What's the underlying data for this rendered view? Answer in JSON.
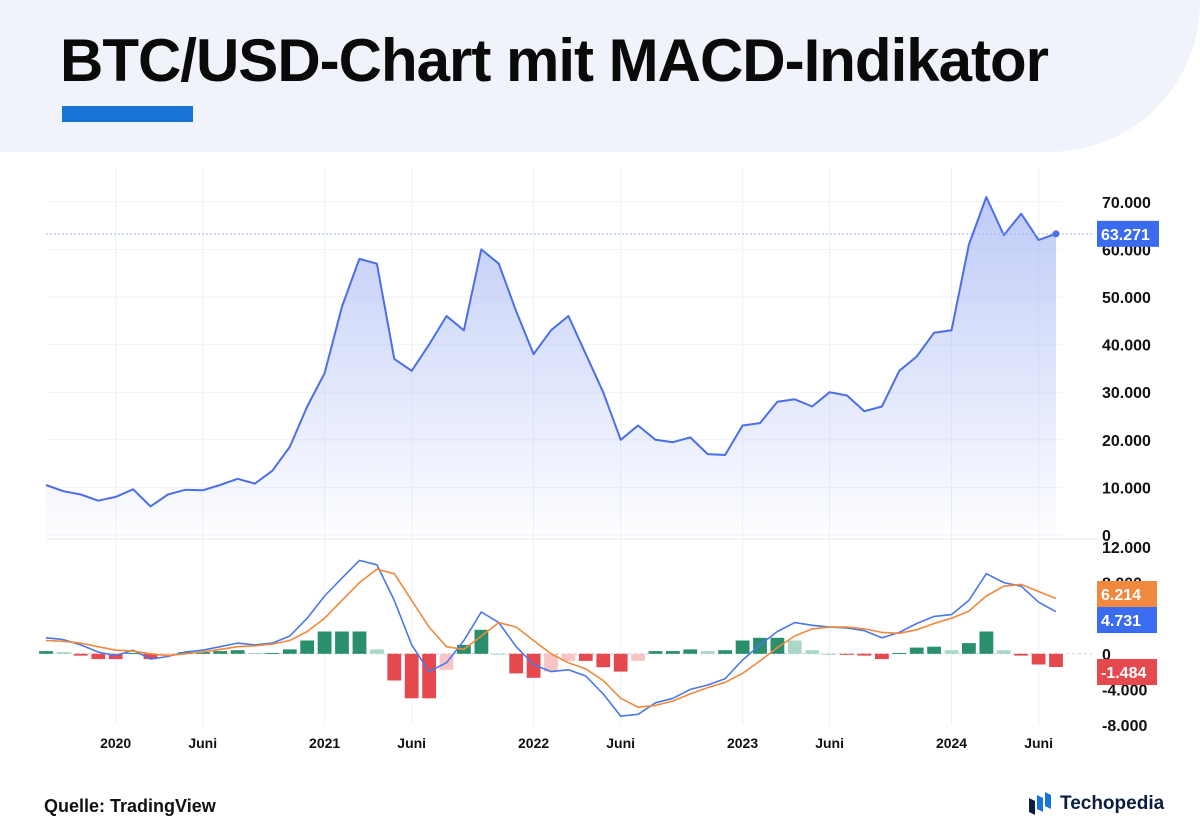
{
  "title": "BTC/USD-Chart mit MACD-Indikator",
  "source": "Quelle: TradingView",
  "brand": {
    "name": "Techopedia",
    "icon": "techopedia-logo-icon",
    "color": "#1a73d9"
  },
  "colors": {
    "price_line": "#4a6fe8",
    "price_fill_top": "#a9b9f5",
    "macd_line": "#4a78e8",
    "signal_line": "#f0883e",
    "hist_pos_strong": "#2a8f6c",
    "hist_pos_weak": "#a9d8c4",
    "hist_neg_strong": "#e5484d",
    "hist_neg_weak": "#f7c5c5",
    "badge_price": "#3b6cf0",
    "badge_signal": "#f0883e",
    "badge_macd": "#3b6cf0",
    "badge_hist": "#e5484d"
  },
  "chart_data": [
    {
      "type": "area",
      "series": [
        {
          "x": [
            "2019-09",
            "2019-10",
            "2019-11",
            "2019-12",
            "2020-01",
            "2020-02",
            "2020-03",
            "2020-04",
            "2020-05",
            "2020-06",
            "2020-07",
            "2020-08",
            "2020-09",
            "2020-10",
            "2020-11",
            "2020-12",
            "2021-01",
            "2021-02",
            "2021-03",
            "2021-04",
            "2021-05",
            "2021-06",
            "2021-07",
            "2021-08",
            "2021-09",
            "2021-10",
            "2021-11",
            "2021-12",
            "2022-01",
            "2022-02",
            "2022-03",
            "2022-04",
            "2022-05",
            "2022-06",
            "2022-07",
            "2022-08",
            "2022-09",
            "2022-10",
            "2022-11",
            "2022-12",
            "2023-01",
            "2023-02",
            "2023-03",
            "2023-04",
            "2023-05",
            "2023-06",
            "2023-07",
            "2023-08",
            "2023-09",
            "2023-10",
            "2023-11",
            "2023-12",
            "2024-01",
            "2024-02",
            "2024-03",
            "2024-04",
            "2024-05",
            "2024-06",
            "2024-07"
          ],
          "values": [
            10500,
            9200,
            8500,
            7200,
            8000,
            9600,
            6000,
            8500,
            9500,
            9400,
            10500,
            11800,
            10800,
            13500,
            18500,
            27000,
            34000,
            48000,
            58000,
            57000,
            37000,
            34500,
            40000,
            46000,
            43000,
            60000,
            57000,
            47000,
            38000,
            43000,
            46000,
            38000,
            30000,
            20000,
            23000,
            20000,
            19500,
            20500,
            17000,
            16800,
            23000,
            23500,
            28000,
            28500,
            27000,
            30000,
            29300,
            26000,
            27000,
            34500,
            37500,
            42500,
            43000,
            61000,
            71000,
            63000,
            67500,
            62000,
            63271
          ]
        }
      ],
      "ylim": [
        0,
        75000
      ],
      "yticks": [
        "70.000",
        "60.000",
        "50.000",
        "40.000",
        "30.000",
        "20.000",
        "10.000",
        "0"
      ],
      "last_value_label": "63.271",
      "grid": true
    },
    {
      "type": "line",
      "series": [
        {
          "x": [
            "2019-09",
            "2019-10",
            "2019-11",
            "2019-12",
            "2020-01",
            "2020-02",
            "2020-03",
            "2020-04",
            "2020-05",
            "2020-06",
            "2020-07",
            "2020-08",
            "2020-09",
            "2020-10",
            "2020-11",
            "2020-12",
            "2021-01",
            "2021-02",
            "2021-03",
            "2021-04",
            "2021-05",
            "2021-06",
            "2021-07",
            "2021-08",
            "2021-09",
            "2021-10",
            "2021-11",
            "2021-12",
            "2022-01",
            "2022-02",
            "2022-03",
            "2022-04",
            "2022-05",
            "2022-06",
            "2022-07",
            "2022-08",
            "2022-09",
            "2022-10",
            "2022-11",
            "2022-12",
            "2023-01",
            "2023-02",
            "2023-03",
            "2023-04",
            "2023-05",
            "2023-06",
            "2023-07",
            "2023-08",
            "2023-09",
            "2023-10",
            "2023-11",
            "2023-12",
            "2024-01",
            "2024-02",
            "2024-03",
            "2024-04",
            "2024-05",
            "2024-06",
            "2024-07"
          ],
          "values": [
            1800,
            1600,
            1000,
            200,
            -200,
            400,
            -600,
            -300,
            200,
            400,
            800,
            1200,
            1000,
            1200,
            2000,
            4000,
            6500,
            8500,
            10500,
            10000,
            6000,
            1000,
            -2000,
            -1000,
            1500,
            4700,
            3500,
            800,
            -1200,
            -2000,
            -1800,
            -2500,
            -4500,
            -7000,
            -6800,
            -5500,
            -5000,
            -4000,
            -3500,
            -2800,
            -700,
            1000,
            2500,
            3500,
            3200,
            3000,
            2900,
            2600,
            1800,
            2400,
            3400,
            4200,
            4400,
            6000,
            9000,
            8000,
            7600,
            5800,
            4731
          ]
        },
        {
          "x": [
            "2019-09",
            "2019-10",
            "2019-11",
            "2019-12",
            "2020-01",
            "2020-02",
            "2020-03",
            "2020-04",
            "2020-05",
            "2020-06",
            "2020-07",
            "2020-08",
            "2020-09",
            "2020-10",
            "2020-11",
            "2020-12",
            "2021-01",
            "2021-02",
            "2021-03",
            "2021-04",
            "2021-05",
            "2021-06",
            "2021-07",
            "2021-08",
            "2021-09",
            "2021-10",
            "2021-11",
            "2021-12",
            "2022-01",
            "2022-02",
            "2022-03",
            "2022-04",
            "2022-05",
            "2022-06",
            "2022-07",
            "2022-08",
            "2022-09",
            "2022-10",
            "2022-11",
            "2022-12",
            "2023-01",
            "2023-02",
            "2023-03",
            "2023-04",
            "2023-05",
            "2023-06",
            "2023-07",
            "2023-08",
            "2023-09",
            "2023-10",
            "2023-11",
            "2023-12",
            "2024-01",
            "2024-02",
            "2024-03",
            "2024-04",
            "2024-05",
            "2024-06",
            "2024-07"
          ],
          "values": [
            1500,
            1400,
            1200,
            800,
            400,
            300,
            0,
            -200,
            0,
            200,
            500,
            800,
            900,
            1100,
            1500,
            2500,
            4000,
            6000,
            8000,
            9500,
            9000,
            6000,
            3000,
            800,
            500,
            2000,
            3500,
            3000,
            1500,
            0,
            -1000,
            -1700,
            -3000,
            -5000,
            -6000,
            -5800,
            -5300,
            -4500,
            -3800,
            -3200,
            -2200,
            -800,
            700,
            2000,
            2800,
            3000,
            3000,
            2800,
            2400,
            2300,
            2700,
            3400,
            4000,
            4800,
            6500,
            7600,
            7800,
            7000,
            6214
          ]
        }
      ],
      "histogram": {
        "x": [
          "2019-09",
          "2019-10",
          "2019-11",
          "2019-12",
          "2020-01",
          "2020-02",
          "2020-03",
          "2020-04",
          "2020-05",
          "2020-06",
          "2020-07",
          "2020-08",
          "2020-09",
          "2020-10",
          "2020-11",
          "2020-12",
          "2021-01",
          "2021-02",
          "2021-03",
          "2021-04",
          "2021-05",
          "2021-06",
          "2021-07",
          "2021-08",
          "2021-09",
          "2021-10",
          "2021-11",
          "2021-12",
          "2022-01",
          "2022-02",
          "2022-03",
          "2022-04",
          "2022-05",
          "2022-06",
          "2022-07",
          "2022-08",
          "2022-09",
          "2022-10",
          "2022-11",
          "2022-12",
          "2023-01",
          "2023-02",
          "2023-03",
          "2023-04",
          "2023-05",
          "2023-06",
          "2023-07",
          "2023-08",
          "2023-09",
          "2023-10",
          "2023-11",
          "2023-12",
          "2024-01",
          "2024-02",
          "2024-03",
          "2024-04",
          "2024-05",
          "2024-06",
          "2024-07"
        ],
        "values": [
          300,
          200,
          -200,
          -600,
          -600,
          100,
          -600,
          -100,
          200,
          200,
          300,
          400,
          100,
          100,
          500,
          1500,
          2500,
          2500,
          2500,
          500,
          -3000,
          -5000,
          -5000,
          -1800,
          1000,
          2700,
          0,
          -2200,
          -2700,
          -2000,
          -800,
          -800,
          -1500,
          -2000,
          -800,
          300,
          300,
          500,
          300,
          400,
          1500,
          1800,
          1800,
          1500,
          400,
          0,
          -100,
          -200,
          -600,
          100,
          700,
          800,
          400,
          1200,
          2500,
          400,
          -200,
          -1200,
          -1484
        ]
      },
      "ylim": [
        -8000,
        12000
      ],
      "yticks": [
        "12.000",
        "8.000",
        "4.000",
        "0",
        "-4.000",
        "-8.000"
      ],
      "last_value_labels": {
        "signal": "6.214",
        "macd": "4.731",
        "histogram": "-1.484"
      }
    }
  ],
  "x_axis": {
    "ticks": [
      {
        "date": "2020-01",
        "label": "2020"
      },
      {
        "date": "2020-06",
        "label": "Juni"
      },
      {
        "date": "2021-01",
        "label": "2021"
      },
      {
        "date": "2021-06",
        "label": "Juni"
      },
      {
        "date": "2022-01",
        "label": "2022"
      },
      {
        "date": "2022-06",
        "label": "Juni"
      },
      {
        "date": "2023-01",
        "label": "2023"
      },
      {
        "date": "2023-06",
        "label": "Juni"
      },
      {
        "date": "2024-01",
        "label": "2024"
      },
      {
        "date": "2024-06",
        "label": "Juni"
      }
    ]
  }
}
